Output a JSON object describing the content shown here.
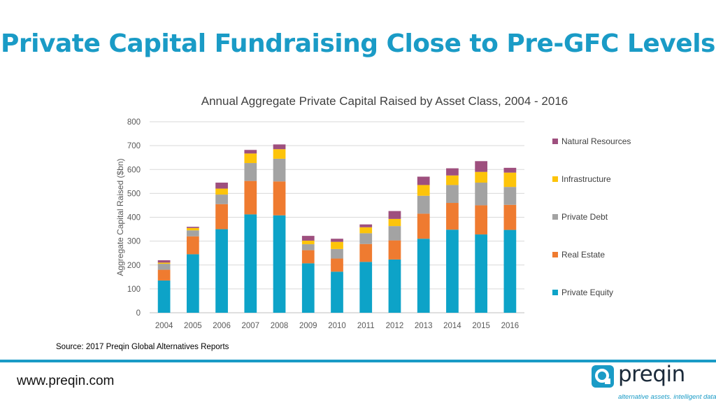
{
  "slide": {
    "title": "Private Capital Fundraising Close to Pre-GFC Levels",
    "source": "Source: 2017 Preqin Global Alternatives Reports",
    "website": "www.preqin.com"
  },
  "logo": {
    "name": "preqin",
    "tagline": "alternative assets. intelligent data.",
    "color": "#1a9bc6"
  },
  "chart_data": {
    "type": "bar",
    "stacked": true,
    "title": "Annual Aggregate Private Capital Raised by Asset Class, 2004 - 2016",
    "xlabel": "",
    "ylabel": "Aggregate Capital Raised ($bn)",
    "ylim": [
      0,
      800
    ],
    "yticks": [
      0,
      100,
      200,
      300,
      400,
      500,
      600,
      700,
      800
    ],
    "grid": true,
    "legend_position": "right",
    "categories": [
      "2004",
      "2005",
      "2006",
      "2007",
      "2008",
      "2009",
      "2010",
      "2011",
      "2012",
      "2013",
      "2014",
      "2015",
      "2016"
    ],
    "series": [
      {
        "name": "Private Equity",
        "color": "#0da3c8",
        "values": [
          135,
          245,
          350,
          412,
          408,
          207,
          172,
          213,
          223,
          310,
          348,
          328,
          347
        ]
      },
      {
        "name": "Real Estate",
        "color": "#ef7b30",
        "values": [
          45,
          75,
          105,
          140,
          142,
          55,
          55,
          75,
          80,
          105,
          112,
          122,
          105
        ]
      },
      {
        "name": "Private Debt",
        "color": "#a3a3a3",
        "values": [
          25,
          25,
          40,
          75,
          95,
          25,
          40,
          45,
          60,
          75,
          75,
          95,
          75
        ]
      },
      {
        "name": "Infrastructure",
        "color": "#fdc40a",
        "values": [
          5,
          10,
          25,
          40,
          40,
          15,
          30,
          25,
          30,
          45,
          40,
          45,
          60
        ]
      },
      {
        "name": "Natural Resources",
        "color": "#9e4f7e",
        "values": [
          10,
          5,
          25,
          15,
          20,
          20,
          13,
          12,
          33,
          35,
          30,
          45,
          20
        ]
      }
    ]
  }
}
